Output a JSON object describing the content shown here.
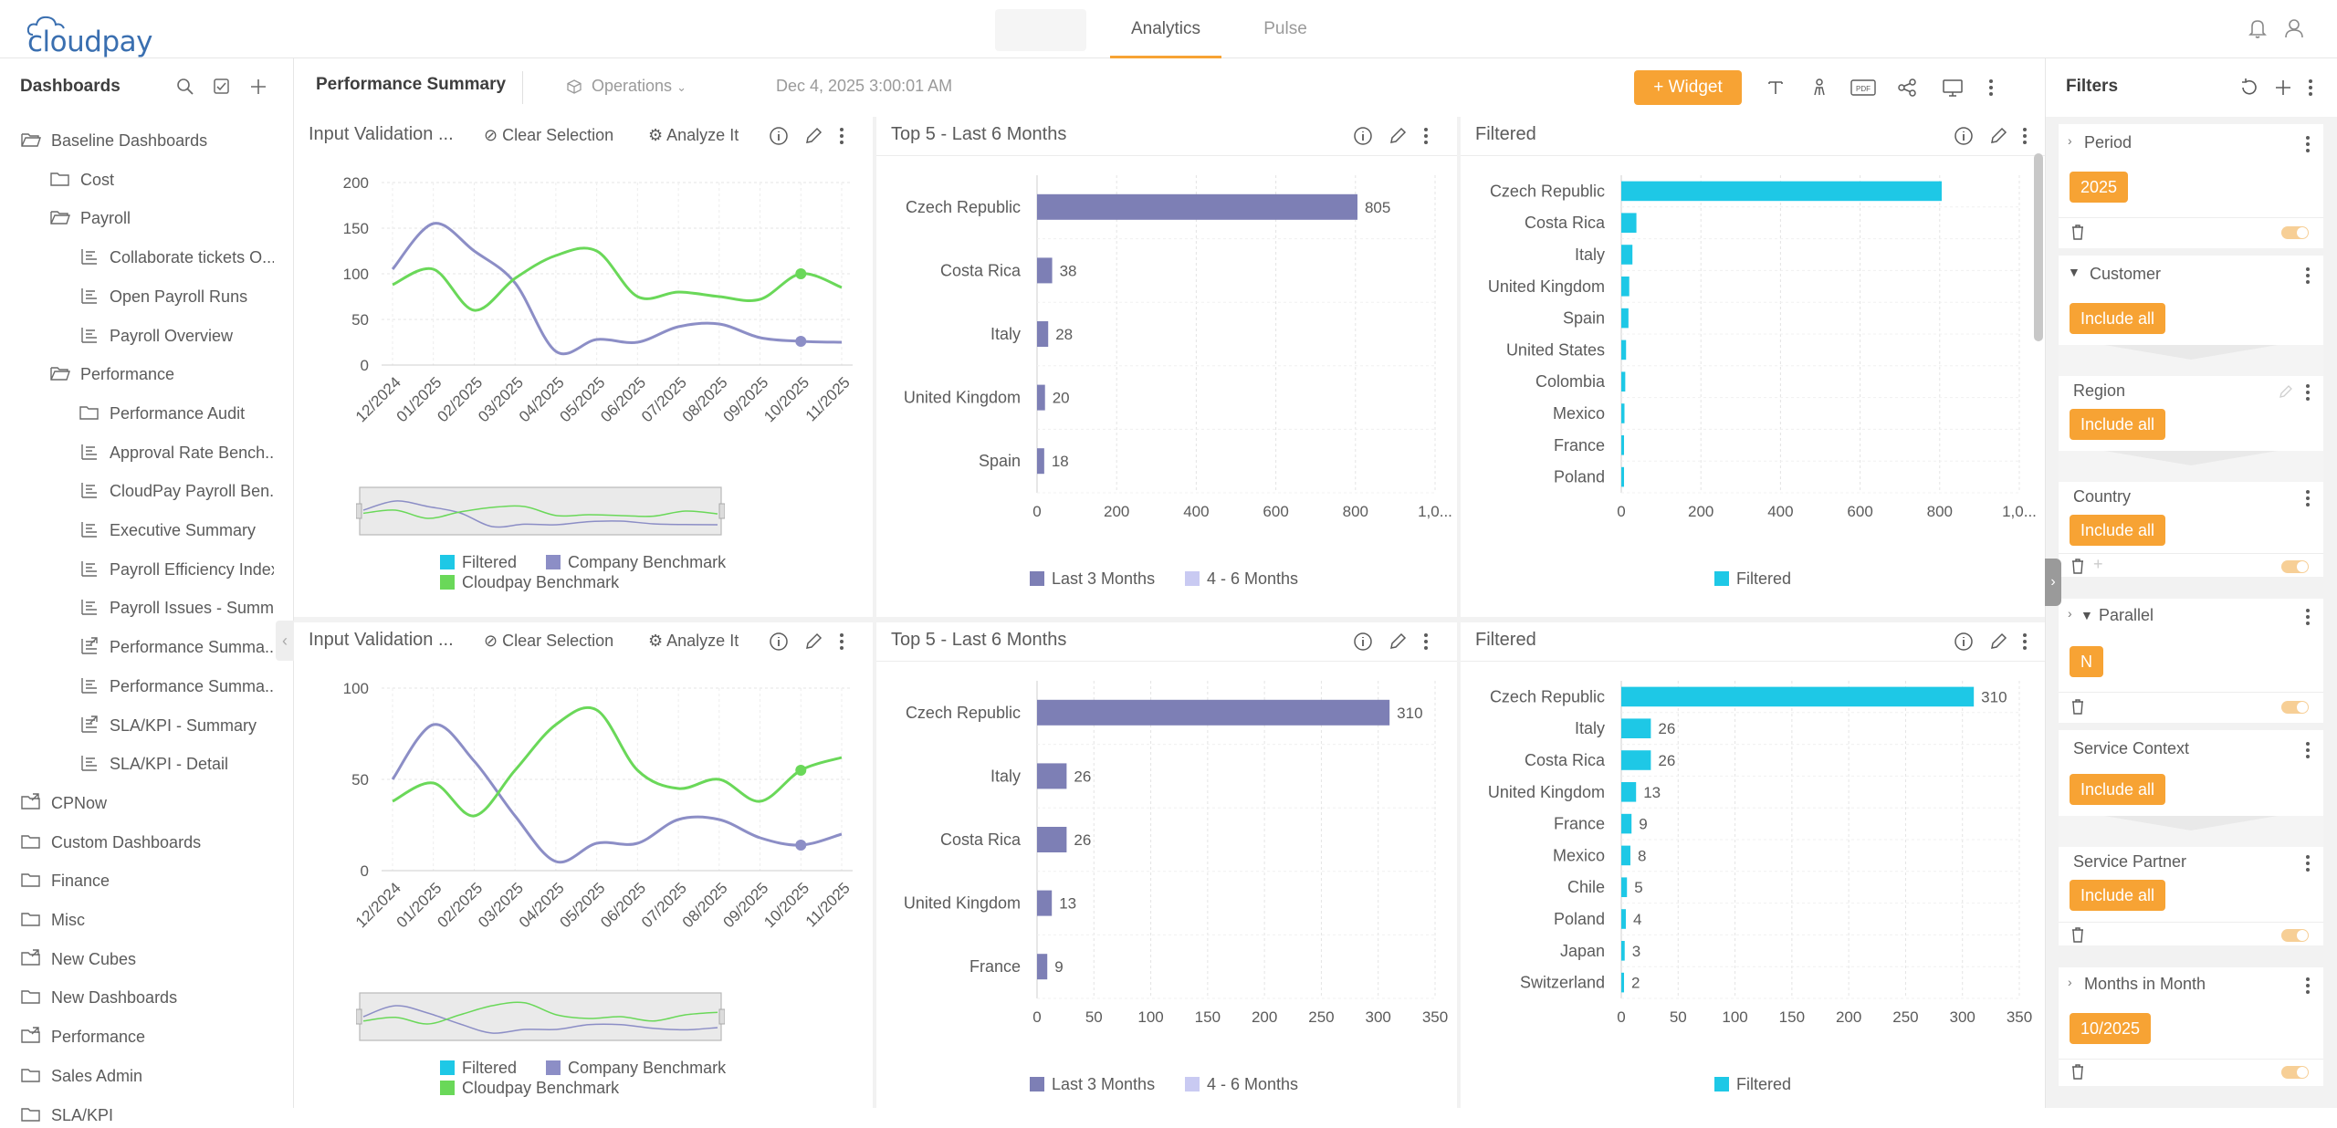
{
  "app": {
    "logo": "cloudpay"
  },
  "topnav": {
    "tabs": [
      "Analytics",
      "Pulse"
    ],
    "active": "Analytics"
  },
  "sidebar": {
    "title": "Dashboards",
    "items": [
      {
        "label": "Baseline Dashboards",
        "icon": "folder-open-icon",
        "level": 0
      },
      {
        "label": "Cost",
        "icon": "folder-icon",
        "level": 1
      },
      {
        "label": "Payroll",
        "icon": "folder-open-icon",
        "level": 1
      },
      {
        "label": "Collaborate tickets O...",
        "icon": "dashboard-icon",
        "level": 2
      },
      {
        "label": "Open Payroll Runs",
        "icon": "dashboard-icon",
        "level": 2
      },
      {
        "label": "Payroll Overview",
        "icon": "dashboard-icon",
        "level": 2
      },
      {
        "label": "Performance",
        "icon": "folder-open-icon",
        "level": 1
      },
      {
        "label": "Performance Audit",
        "icon": "folder-icon",
        "level": 2
      },
      {
        "label": "Approval Rate Bench...",
        "icon": "dashboard-icon",
        "level": 2
      },
      {
        "label": "CloudPay Payroll Ben...",
        "icon": "dashboard-icon",
        "level": 2
      },
      {
        "label": "Executive Summary",
        "icon": "dashboard-icon",
        "level": 2
      },
      {
        "label": "Payroll Efficiency Index",
        "icon": "dashboard-icon",
        "level": 2
      },
      {
        "label": "Payroll Issues - Summ...",
        "icon": "dashboard-icon",
        "level": 2
      },
      {
        "label": "Performance Summa...",
        "icon": "shared-dashboard-icon",
        "level": 2
      },
      {
        "label": "Performance Summa...",
        "icon": "dashboard-icon",
        "level": 2
      },
      {
        "label": "SLA/KPI - Summary",
        "icon": "shared-dashboard-icon",
        "level": 2
      },
      {
        "label": "SLA/KPI - Detail",
        "icon": "dashboard-icon",
        "level": 2
      },
      {
        "label": "CPNow",
        "icon": "shared-folder-icon",
        "level": 0
      },
      {
        "label": "Custom Dashboards",
        "icon": "folder-icon",
        "level": 0
      },
      {
        "label": "Finance",
        "icon": "folder-icon",
        "level": 0
      },
      {
        "label": "Misc",
        "icon": "folder-icon",
        "level": 0
      },
      {
        "label": "New Cubes",
        "icon": "shared-folder-icon",
        "level": 0
      },
      {
        "label": "New Dashboards",
        "icon": "folder-icon",
        "level": 0
      },
      {
        "label": "Performance",
        "icon": "shared-folder-icon",
        "level": 0
      },
      {
        "label": "Sales Admin",
        "icon": "folder-icon",
        "level": 0
      },
      {
        "label": "SLA/KPI",
        "icon": "folder-icon",
        "level": 0
      }
    ]
  },
  "dashboard": {
    "title": "Performance Summary",
    "datasource": "Operations",
    "timestamp": "Dec 4, 2025 3:00:01 AM",
    "widget_button": "Widget"
  },
  "widgets": {
    "tools": {
      "clear": "Clear Selection",
      "analyze": "Analyze It"
    },
    "line_top": {
      "title": "Input Validation ..."
    },
    "line_bottom": {
      "title": "Input Validation ..."
    },
    "bar_mid_top": {
      "title": "Top 5 - Last 6 Months"
    },
    "bar_mid_bottom": {
      "title": "Top 5 - Last 6 Months"
    },
    "bar_right_top": {
      "title": "Filtered"
    },
    "bar_right_bottom": {
      "title": "Filtered"
    },
    "legend_line": [
      "Filtered",
      "Company Benchmark",
      "Cloudpay Benchmark"
    ],
    "legend_mid": [
      "Last 3 Months",
      "4 - 6 Months"
    ],
    "legend_right": [
      "Filtered"
    ]
  },
  "colors": {
    "filtered": "#1ec8e6",
    "company": "#8c8ec6",
    "cloudpay": "#6ad859",
    "last3": "#7d7fb5",
    "last46": "#c9caf2",
    "accent": "#f7a334"
  },
  "chart_data": [
    {
      "type": "line",
      "title": "Input Validation ...",
      "categories": [
        "12/2024",
        "01/2025",
        "02/2025",
        "03/2025",
        "04/2025",
        "05/2025",
        "06/2025",
        "07/2025",
        "08/2025",
        "09/2025",
        "10/2025",
        "11/2025"
      ],
      "series": [
        {
          "name": "Company Benchmark",
          "values": [
            105,
            155,
            125,
            90,
            15,
            28,
            25,
            42,
            45,
            30,
            26,
            25
          ]
        },
        {
          "name": "Cloudpay Benchmark",
          "values": [
            88,
            105,
            60,
            95,
            120,
            125,
            75,
            80,
            75,
            72,
            100,
            85
          ]
        }
      ],
      "ylim": [
        0,
        200
      ],
      "yticks": [
        0,
        50,
        100,
        150,
        200
      ]
    },
    {
      "type": "bar",
      "orientation": "horizontal",
      "title": "Top 5 - Last 6 Months",
      "categories": [
        "Czech Republic",
        "Costa Rica",
        "Italy",
        "United Kingdom",
        "Spain"
      ],
      "series": [
        {
          "name": "Last 3 Months",
          "values": [
            805,
            38,
            28,
            20,
            18
          ]
        }
      ],
      "xticks": [
        "0",
        "200",
        "400",
        "600",
        "800",
        "1,0..."
      ],
      "xlim": [
        0,
        1000
      ]
    },
    {
      "type": "bar",
      "orientation": "horizontal",
      "title": "Filtered",
      "categories": [
        "Czech Republic",
        "Costa Rica",
        "Italy",
        "United Kingdom",
        "Spain",
        "United States",
        "Colombia",
        "Mexico",
        "France",
        "Poland"
      ],
      "series": [
        {
          "name": "Filtered",
          "values": [
            805,
            38,
            28,
            20,
            18,
            12,
            10,
            8,
            6,
            4
          ]
        }
      ],
      "xticks": [
        "0",
        "200",
        "400",
        "600",
        "800",
        "1,0..."
      ],
      "xlim": [
        0,
        1000
      ]
    },
    {
      "type": "line",
      "title": "Input Validation ...",
      "categories": [
        "12/2024",
        "01/2025",
        "02/2025",
        "03/2025",
        "04/2025",
        "05/2025",
        "06/2025",
        "07/2025",
        "08/2025",
        "09/2025",
        "10/2025",
        "11/2025"
      ],
      "series": [
        {
          "name": "Company Benchmark",
          "values": [
            50,
            80,
            60,
            30,
            5,
            15,
            15,
            28,
            28,
            18,
            14,
            20
          ]
        },
        {
          "name": "Cloudpay Benchmark",
          "values": [
            38,
            48,
            30,
            55,
            80,
            88,
            55,
            45,
            50,
            38,
            55,
            62
          ]
        }
      ],
      "ylim": [
        0,
        100
      ],
      "yticks": [
        0,
        50,
        100
      ]
    },
    {
      "type": "bar",
      "orientation": "horizontal",
      "title": "Top 5 - Last 6 Months",
      "categories": [
        "Czech Republic",
        "Italy",
        "Costa Rica",
        "United Kingdom",
        "France"
      ],
      "series": [
        {
          "name": "Last 3 Months",
          "values": [
            310,
            26,
            26,
            13,
            9
          ]
        }
      ],
      "xticks": [
        "0",
        "50",
        "100",
        "150",
        "200",
        "250",
        "300",
        "350"
      ],
      "xlim": [
        0,
        350
      ]
    },
    {
      "type": "bar",
      "orientation": "horizontal",
      "title": "Filtered",
      "categories": [
        "Czech Republic",
        "Italy",
        "Costa Rica",
        "United Kingdom",
        "France",
        "Mexico",
        "Chile",
        "Poland",
        "Japan",
        "Switzerland"
      ],
      "series": [
        {
          "name": "Filtered",
          "values": [
            310,
            26,
            26,
            13,
            9,
            8,
            5,
            4,
            3,
            2
          ]
        }
      ],
      "xticks": [
        "0",
        "50",
        "100",
        "150",
        "200",
        "250",
        "300",
        "350"
      ],
      "xlim": [
        0,
        350
      ]
    }
  ],
  "filters": {
    "title": "Filters",
    "cards": [
      {
        "label": "Period",
        "value": "2025"
      },
      {
        "label": "Customer",
        "value": "Include all"
      },
      {
        "label": "Region",
        "value": "Include all"
      },
      {
        "label": "Country",
        "value": "Include all"
      },
      {
        "label": "Parallel",
        "value": "N"
      },
      {
        "label": "Service Context",
        "value": "Include all"
      },
      {
        "label": "Service Partner",
        "value": "Include all"
      },
      {
        "label": "Months in Month",
        "value": "10/2025"
      }
    ]
  }
}
